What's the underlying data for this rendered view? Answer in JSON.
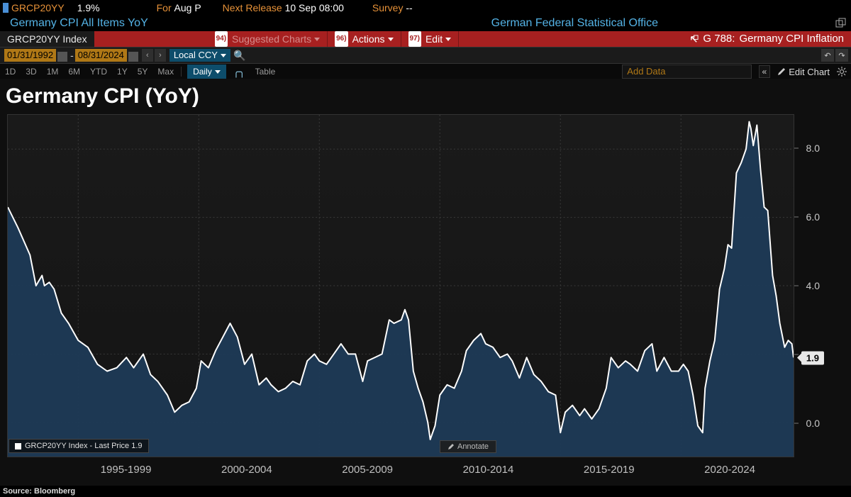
{
  "header": {
    "ticker": "GRCP20YY",
    "last_value": "1.9%",
    "for_label": "For",
    "for_value": "Aug P",
    "next_release_label": "Next Release",
    "next_release_value": "10 Sep 08:00",
    "survey_label": "Survey",
    "survey_value": "--",
    "description": "Germany CPI All Items YoY",
    "source": "German Federal Statistical Office"
  },
  "actionbar": {
    "index_label": "GRCP20YY Index",
    "item94_num": "94)",
    "item94": "Suggested Charts",
    "item96_num": "96)",
    "item96": "Actions",
    "item97_num": "97)",
    "item97": "Edit",
    "right_code": "G 788:",
    "right_label": "Germany CPI Inflation"
  },
  "datebar": {
    "start": "01/31/1992",
    "end": "08/31/2024",
    "sep": "-",
    "ccy": "Local CCY"
  },
  "rangebar": {
    "ranges": [
      "1D",
      "3D",
      "1M",
      "6M",
      "YTD",
      "1Y",
      "5Y",
      "Max"
    ],
    "freq": "Daily",
    "table": "Table",
    "add_data": "Add Data",
    "edit_chart": "Edit Chart"
  },
  "chart": {
    "title": "Germany CPI (YoY)",
    "type": "area",
    "line_color": "#ffffff",
    "line_width": 2,
    "fill_color": "#1e3a56",
    "fill_opacity": 0.95,
    "background_color": "#181818",
    "grid_color": "#3a3a3a",
    "grid_dash": "2,3",
    "ylim": [
      -1.0,
      9.0
    ],
    "yticks": [
      0.0,
      2.0,
      4.0,
      6.0,
      8.0
    ],
    "ytick_labels": [
      "0.0",
      "2.0",
      "4.0",
      "6.0",
      "8.0"
    ],
    "last_value": 1.9,
    "last_label": "1.9",
    "x_tick_groups": [
      "1995-1999",
      "2000-2004",
      "2005-2009",
      "2010-2014",
      "2015-2019",
      "2020-2024"
    ],
    "x_start": 1992.08,
    "x_end": 2024.67,
    "legend_text": "GRCP20YY Index - Last Price 1.9",
    "annotate_label": "Annotate",
    "series": [
      [
        1992.08,
        6.3
      ],
      [
        1992.5,
        5.7
      ],
      [
        1993.0,
        4.9
      ],
      [
        1993.25,
        4.0
      ],
      [
        1993.5,
        4.3
      ],
      [
        1993.6,
        4.0
      ],
      [
        1993.8,
        4.1
      ],
      [
        1994.0,
        3.9
      ],
      [
        1994.3,
        3.2
      ],
      [
        1994.6,
        2.9
      ],
      [
        1995.0,
        2.4
      ],
      [
        1995.4,
        2.2
      ],
      [
        1995.8,
        1.7
      ],
      [
        1996.2,
        1.5
      ],
      [
        1996.6,
        1.6
      ],
      [
        1997.0,
        1.9
      ],
      [
        1997.3,
        1.6
      ],
      [
        1997.7,
        2.0
      ],
      [
        1998.0,
        1.4
      ],
      [
        1998.3,
        1.2
      ],
      [
        1998.7,
        0.8
      ],
      [
        1999.0,
        0.3
      ],
      [
        1999.3,
        0.5
      ],
      [
        1999.6,
        0.6
      ],
      [
        1999.9,
        1.0
      ],
      [
        2000.1,
        1.8
      ],
      [
        2000.4,
        1.6
      ],
      [
        2000.7,
        2.1
      ],
      [
        2001.0,
        2.5
      ],
      [
        2001.3,
        2.9
      ],
      [
        2001.6,
        2.5
      ],
      [
        2001.9,
        1.7
      ],
      [
        2002.2,
        2.0
      ],
      [
        2002.5,
        1.1
      ],
      [
        2002.8,
        1.3
      ],
      [
        2003.0,
        1.1
      ],
      [
        2003.3,
        0.9
      ],
      [
        2003.6,
        1.0
      ],
      [
        2003.9,
        1.2
      ],
      [
        2004.2,
        1.1
      ],
      [
        2004.5,
        1.8
      ],
      [
        2004.8,
        2.0
      ],
      [
        2005.0,
        1.8
      ],
      [
        2005.3,
        1.7
      ],
      [
        2005.6,
        2.0
      ],
      [
        2005.9,
        2.3
      ],
      [
        2006.2,
        2.0
      ],
      [
        2006.5,
        2.0
      ],
      [
        2006.8,
        1.2
      ],
      [
        2007.0,
        1.8
      ],
      [
        2007.3,
        1.9
      ],
      [
        2007.6,
        2.0
      ],
      [
        2007.9,
        3.0
      ],
      [
        2008.1,
        2.9
      ],
      [
        2008.4,
        3.0
      ],
      [
        2008.55,
        3.3
      ],
      [
        2008.7,
        3.0
      ],
      [
        2008.9,
        1.5
      ],
      [
        2009.1,
        1.0
      ],
      [
        2009.3,
        0.6
      ],
      [
        2009.5,
        0.0
      ],
      [
        2009.6,
        -0.5
      ],
      [
        2009.8,
        -0.1
      ],
      [
        2010.0,
        0.8
      ],
      [
        2010.3,
        1.1
      ],
      [
        2010.6,
        1.0
      ],
      [
        2010.9,
        1.5
      ],
      [
        2011.1,
        2.1
      ],
      [
        2011.4,
        2.4
      ],
      [
        2011.7,
        2.6
      ],
      [
        2011.9,
        2.3
      ],
      [
        2012.2,
        2.2
      ],
      [
        2012.5,
        1.9
      ],
      [
        2012.8,
        2.0
      ],
      [
        2013.0,
        1.8
      ],
      [
        2013.3,
        1.3
      ],
      [
        2013.6,
        1.9
      ],
      [
        2013.9,
        1.4
      ],
      [
        2014.2,
        1.2
      ],
      [
        2014.5,
        0.9
      ],
      [
        2014.8,
        0.8
      ],
      [
        2015.0,
        -0.3
      ],
      [
        2015.2,
        0.3
      ],
      [
        2015.5,
        0.5
      ],
      [
        2015.8,
        0.2
      ],
      [
        2016.0,
        0.4
      ],
      [
        2016.3,
        0.1
      ],
      [
        2016.6,
        0.4
      ],
      [
        2016.9,
        1.0
      ],
      [
        2017.1,
        1.9
      ],
      [
        2017.4,
        1.6
      ],
      [
        2017.7,
        1.8
      ],
      [
        2017.9,
        1.7
      ],
      [
        2018.2,
        1.5
      ],
      [
        2018.5,
        2.1
      ],
      [
        2018.8,
        2.3
      ],
      [
        2019.0,
        1.5
      ],
      [
        2019.3,
        1.9
      ],
      [
        2019.6,
        1.5
      ],
      [
        2019.9,
        1.5
      ],
      [
        2020.1,
        1.7
      ],
      [
        2020.3,
        1.5
      ],
      [
        2020.5,
        0.8
      ],
      [
        2020.7,
        -0.1
      ],
      [
        2020.9,
        -0.3
      ],
      [
        2021.0,
        1.0
      ],
      [
        2021.2,
        1.8
      ],
      [
        2021.4,
        2.4
      ],
      [
        2021.6,
        3.9
      ],
      [
        2021.8,
        4.5
      ],
      [
        2021.95,
        5.2
      ],
      [
        2022.1,
        5.1
      ],
      [
        2022.3,
        7.3
      ],
      [
        2022.5,
        7.6
      ],
      [
        2022.7,
        8.0
      ],
      [
        2022.83,
        8.8
      ],
      [
        2022.9,
        8.6
      ],
      [
        2023.0,
        8.1
      ],
      [
        2023.15,
        8.7
      ],
      [
        2023.3,
        7.4
      ],
      [
        2023.45,
        6.3
      ],
      [
        2023.6,
        6.2
      ],
      [
        2023.8,
        4.3
      ],
      [
        2023.95,
        3.7
      ],
      [
        2024.1,
        2.9
      ],
      [
        2024.3,
        2.2
      ],
      [
        2024.45,
        2.4
      ],
      [
        2024.6,
        2.3
      ],
      [
        2024.67,
        1.9
      ]
    ]
  },
  "footer": {
    "source_label": "Source: Bloomberg"
  }
}
